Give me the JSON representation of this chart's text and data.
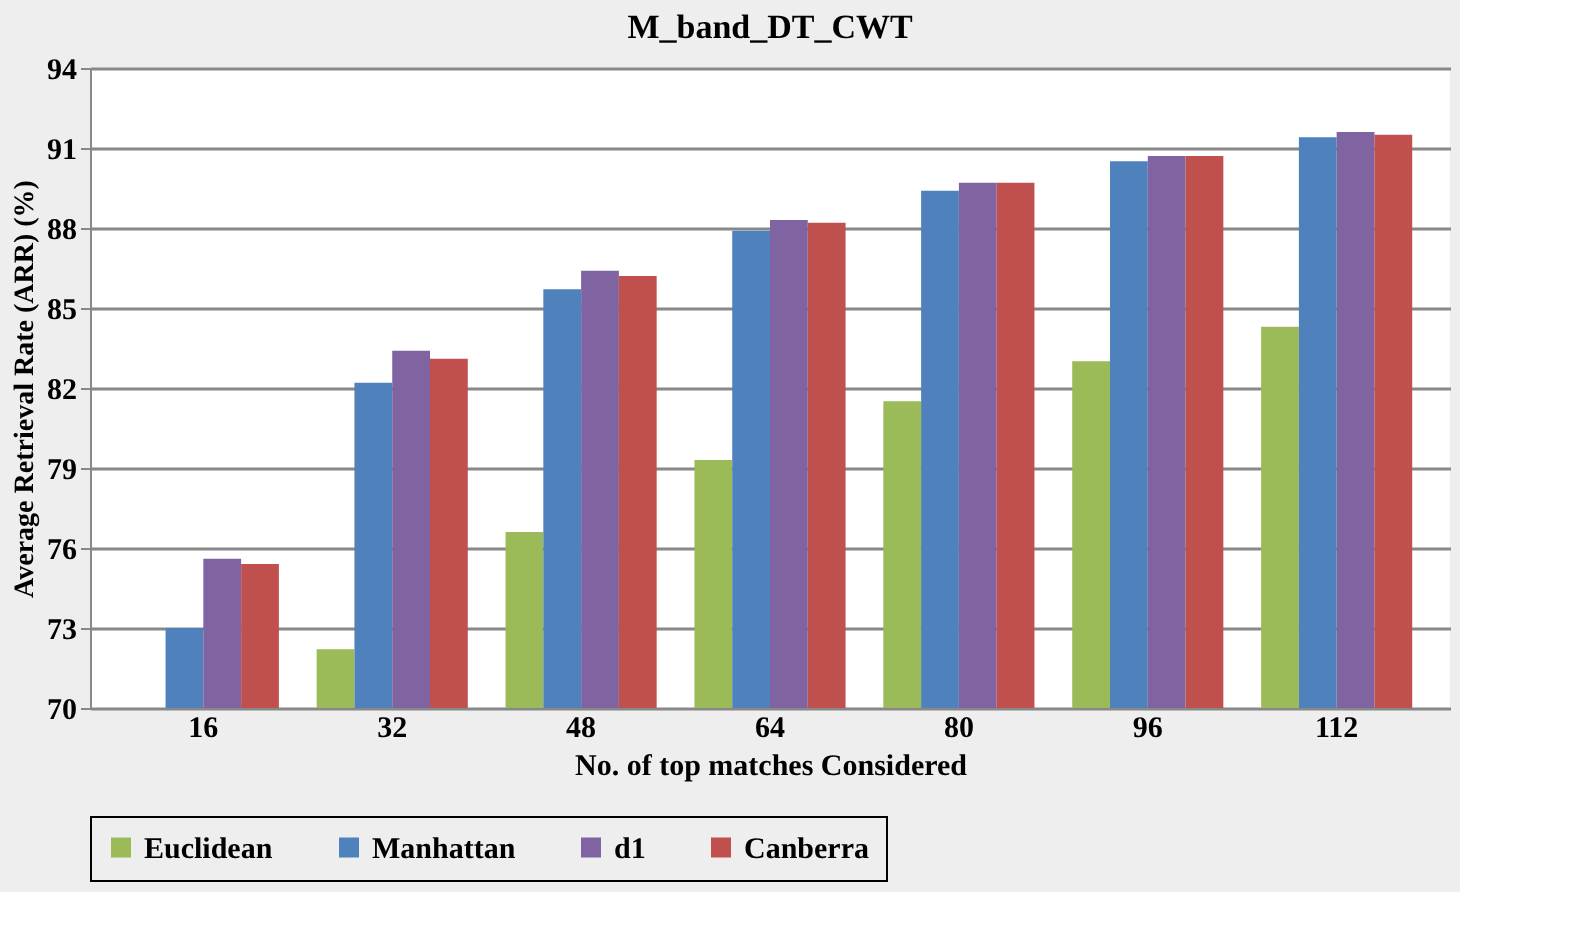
{
  "chart_data": {
    "type": "bar",
    "title": "M_band_DT_CWT",
    "xlabel": "No. of top matches Considered",
    "ylabel": "Average Retrieval Rate (ARR) (%)",
    "categories": [
      "16",
      "32",
      "48",
      "64",
      "80",
      "96",
      "112"
    ],
    "series": [
      {
        "name": "Euclidean",
        "color": "#9bbb59",
        "values": [
          70.0,
          72.2,
          76.6,
          79.3,
          81.5,
          83.0,
          84.3
        ]
      },
      {
        "name": "Manhattan",
        "color": "#4f81bd",
        "values": [
          73.0,
          82.2,
          85.7,
          87.9,
          89.4,
          90.5,
          91.4
        ]
      },
      {
        "name": "d1",
        "color": "#8064a2",
        "values": [
          75.6,
          83.4,
          86.4,
          88.3,
          89.7,
          90.7,
          91.6
        ]
      },
      {
        "name": "Canberra",
        "color": "#c0504d",
        "values": [
          75.4,
          83.1,
          86.2,
          88.2,
          89.7,
          90.7,
          91.5
        ]
      }
    ],
    "ylim": [
      70,
      94
    ],
    "yticks": [
      70,
      73,
      76,
      79,
      82,
      85,
      88,
      91,
      94
    ],
    "grid": "y",
    "legend": "bottom"
  }
}
